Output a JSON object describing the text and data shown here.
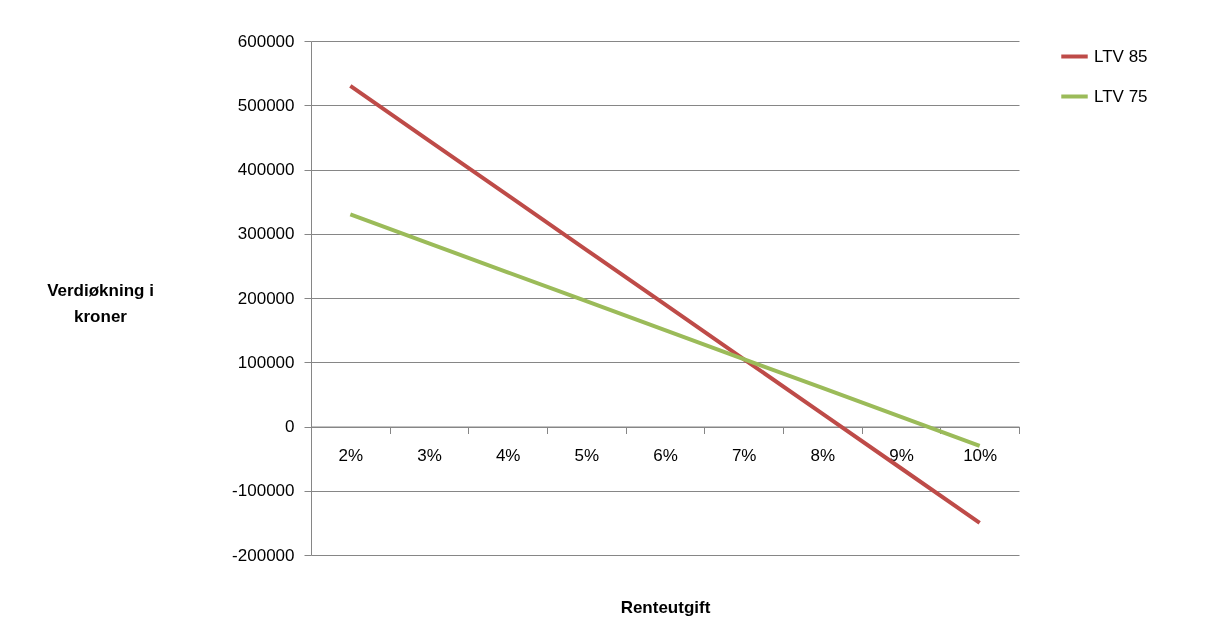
{
  "chart_data": {
    "type": "line",
    "xlabel": "Renteutgift",
    "ylabel": "Verdiøkning i kroner",
    "categories": [
      "2%",
      "3%",
      "4%",
      "5%",
      "6%",
      "7%",
      "8%",
      "9%",
      "10%"
    ],
    "series": [
      {
        "name": "LTV 85",
        "color": "#be4b48",
        "values": [
          530000,
          445000,
          360000,
          275000,
          190000,
          105000,
          20000,
          -65000,
          -150000
        ]
      },
      {
        "name": "LTV 75",
        "color": "#9bbb59",
        "values": [
          330000,
          285000,
          240000,
          195000,
          150000,
          105000,
          60000,
          15000,
          -30000
        ]
      }
    ],
    "ylim": [
      -200000,
      600000
    ],
    "yticks": [
      -200000,
      -100000,
      0,
      100000,
      200000,
      300000,
      400000,
      500000,
      600000
    ],
    "grid": "y",
    "legend": "right",
    "marker": "none",
    "line_style": "solid"
  }
}
